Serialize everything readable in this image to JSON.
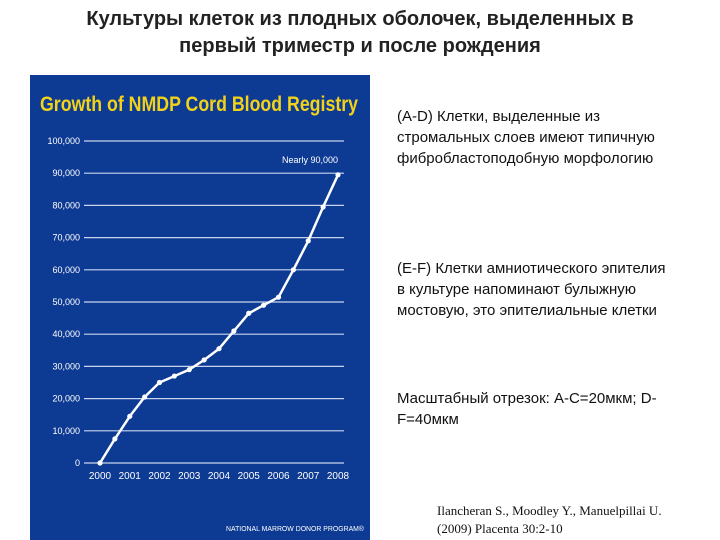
{
  "slide": {
    "title_line1": "Культуры клеток из плодных оболочек, выделенных в",
    "title_line2": "первый триместр и после рождения"
  },
  "text_blocks": [
    "(A-D) Клетки, выделенные из стромальных слоев имеют типичную фибробластоподобную морфологию",
    "(E-F) Клетки амниотического эпителия в культуре напоминают булыжную мостовую, это эпителиальные клетки",
    "Масштабный отрезок: A-C=20мкм; D-F=40мкм"
  ],
  "citation": {
    "line1": "Ilancheran S., Moodley Y., Manuelpillai U.",
    "line2": "(2009) Placenta 30:2-10"
  },
  "chart_data": {
    "type": "line",
    "title": "Growth of NMDP Cord Blood Registry",
    "annotation": "Nearly 90,000",
    "footer": "NATIONAL MARROW DONOR PROGRAM®",
    "x_ticks": [
      "2000",
      "2001",
      "2002",
      "2003",
      "2004",
      "2005",
      "2006",
      "2007",
      "2008"
    ],
    "y_ticks": [
      "0",
      "10,000",
      "20,000",
      "30,000",
      "40,000",
      "50,000",
      "60,000",
      "70,000",
      "80,000",
      "90,000",
      "100,000"
    ],
    "ylim": [
      0,
      100000
    ],
    "xlim": [
      2000,
      2008
    ],
    "grid": true,
    "series": [
      {
        "x": [
          2000,
          2000.5,
          2001,
          2001.5,
          2002,
          2002.5,
          2003,
          2003.5,
          2004,
          2004.5,
          2005,
          2005.5,
          2006,
          2006.5,
          2007,
          2007.5,
          2008
        ],
        "values": [
          0,
          7500,
          14500,
          20500,
          25000,
          27000,
          29000,
          32000,
          35500,
          41000,
          46500,
          49000,
          51500,
          60000,
          69000,
          79500,
          89500
        ]
      }
    ],
    "colors": {
      "background": "#0d3a92",
      "title": "#f2d21a",
      "line": "#ffffff",
      "grid": "#c9d5ee",
      "text": "#ffffff"
    }
  }
}
